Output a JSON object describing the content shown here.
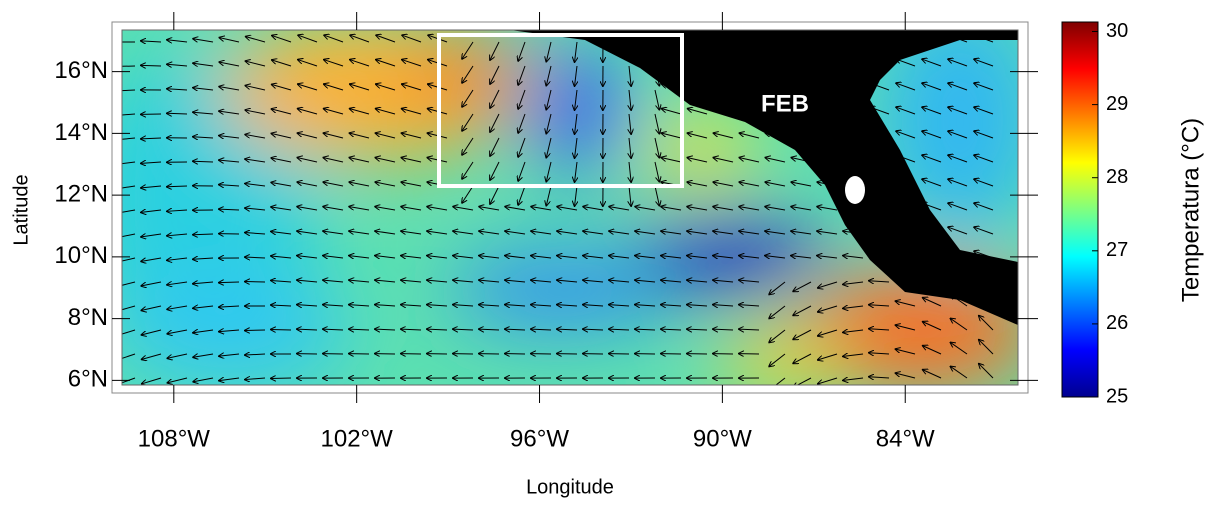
{
  "map": {
    "xlabel": "Longitude",
    "ylabel": "Latitude",
    "annotation": "FEB",
    "xlim": [
      -109.7,
      -80.3
    ],
    "ylim": [
      5.85,
      17.35
    ],
    "xticks": [
      {
        "value": -108,
        "label": "108°W"
      },
      {
        "value": -102,
        "label": "102°W"
      },
      {
        "value": -96,
        "label": "96°W"
      },
      {
        "value": -90,
        "label": "90°W"
      },
      {
        "value": -84,
        "label": "84°W"
      }
    ],
    "yticks": [
      {
        "value": 6,
        "label": "6°N"
      },
      {
        "value": 8,
        "label": "8°N"
      },
      {
        "value": 10,
        "label": "10°N"
      },
      {
        "value": 12,
        "label": "12°N"
      },
      {
        "value": 14,
        "label": "14°N"
      },
      {
        "value": 16,
        "label": "16°N"
      }
    ]
  },
  "colorbar": {
    "label": "Temperatura (°C)",
    "lim": [
      25,
      30.13
    ],
    "ticks": [
      25,
      26,
      27,
      28,
      29,
      30
    ]
  }
}
